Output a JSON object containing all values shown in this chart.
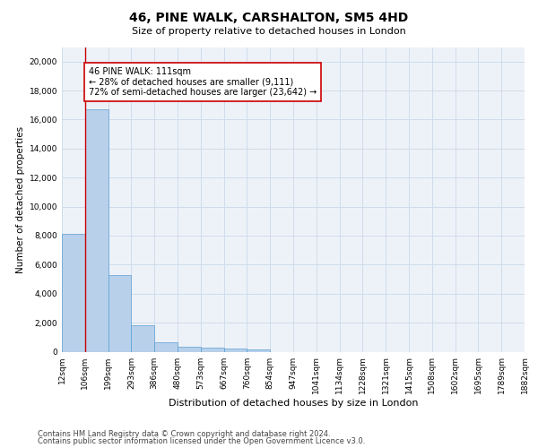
{
  "title1": "46, PINE WALK, CARSHALTON, SM5 4HD",
  "title2": "Size of property relative to detached houses in London",
  "xlabel": "Distribution of detached houses by size in London",
  "ylabel": "Number of detached properties",
  "bar_values": [
    8100,
    16700,
    5300,
    1850,
    650,
    350,
    270,
    200,
    170,
    0,
    0,
    0,
    0,
    0,
    0,
    0,
    0,
    0,
    0
  ],
  "bin_labels": [
    "12sqm",
    "106sqm",
    "199sqm",
    "293sqm",
    "386sqm",
    "480sqm",
    "573sqm",
    "667sqm",
    "760sqm",
    "854sqm",
    "947sqm",
    "1041sqm",
    "1134sqm",
    "1228sqm",
    "1321sqm",
    "1415sqm",
    "1508sqm",
    "1602sqm",
    "1695sqm",
    "1789sqm",
    "1882sqm"
  ],
  "bar_color": "#b8d0ea",
  "bar_edge_color": "#5a9fd4",
  "grid_color": "#d0dcea",
  "background_color": "#edf2f9",
  "annotation_text": "46 PINE WALK: 111sqm\n← 28% of detached houses are smaller (9,111)\n72% of semi-detached houses are larger (23,642) →",
  "annotation_box_color": "#ffffff",
  "annotation_box_edge_color": "#cc0000",
  "property_line_x": 1,
  "ylim": [
    0,
    21000
  ],
  "yticks": [
    0,
    2000,
    4000,
    6000,
    8000,
    10000,
    12000,
    14000,
    16000,
    18000,
    20000
  ],
  "footer1": "Contains HM Land Registry data © Crown copyright and database right 2024.",
  "footer2": "Contains public sector information licensed under the Open Government Licence v3.0.",
  "title1_fontsize": 10,
  "title2_fontsize": 8,
  "ylabel_fontsize": 7.5,
  "xlabel_fontsize": 8,
  "tick_fontsize": 6.5,
  "annotation_fontsize": 7,
  "footer_fontsize": 6
}
